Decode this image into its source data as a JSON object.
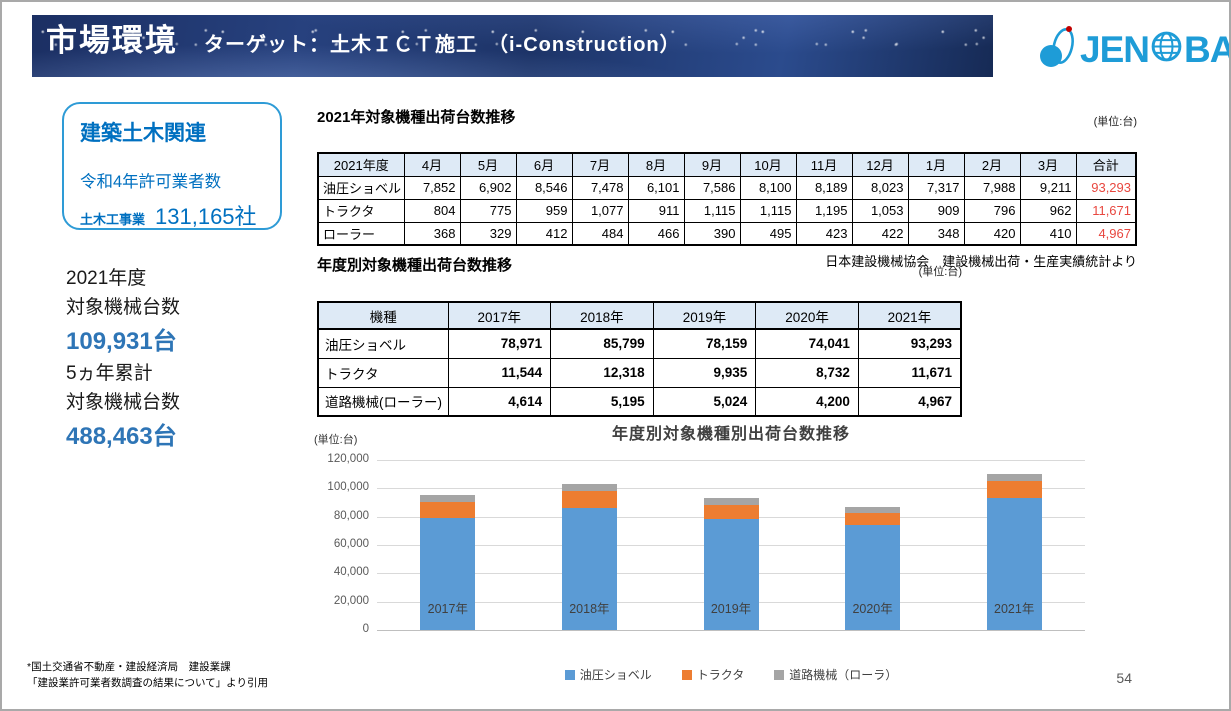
{
  "header": {
    "title": "市場環境",
    "subtitle": "ターゲット：土木ＩＣＴ施工　（i-Construction）"
  },
  "logo": {
    "part1": "JEN",
    "part2": "BA"
  },
  "sidebar": {
    "box": {
      "title": "建築土木関連",
      "line1": "令和4年許可業者数",
      "label2": "土木工事業",
      "value2": "131,165社"
    },
    "stat1": {
      "line1": "2021年度",
      "line2": "対象機械台数",
      "value": "109,931台"
    },
    "stat2": {
      "line1": "5ヵ年累計",
      "line2": "対象機械台数",
      "value": "488,463台"
    },
    "footnote1": "*国土交通省不動産・建設経済局　建設業課",
    "footnote2": "「建設業許可業者数調査の結果について」より引用"
  },
  "monthly_table": {
    "title": "2021年対象機種出荷台数推移",
    "unit": "(単位:台)",
    "header": [
      "2021年度",
      "4月",
      "5月",
      "6月",
      "7月",
      "8月",
      "9月",
      "10月",
      "11月",
      "12月",
      "1月",
      "2月",
      "3月",
      "合計"
    ],
    "rows": [
      {
        "label": "油圧ショベル",
        "values": [
          "7,852",
          "6,902",
          "8,546",
          "7,478",
          "6,101",
          "7,586",
          "8,100",
          "8,189",
          "8,023",
          "7,317",
          "7,988",
          "9,211"
        ],
        "total": "93,293"
      },
      {
        "label": "トラクタ",
        "values": [
          "804",
          "775",
          "959",
          "1,077",
          "911",
          "1,115",
          "1,115",
          "1,195",
          "1,053",
          "909",
          "796",
          "962"
        ],
        "total": "11,671"
      },
      {
        "label": "ローラー",
        "values": [
          "368",
          "329",
          "412",
          "484",
          "466",
          "390",
          "495",
          "423",
          "422",
          "348",
          "420",
          "410"
        ],
        "total": "4,967"
      }
    ],
    "source": "日本建設機械協会　建設機械出荷・生産実績統計より"
  },
  "yearly_table": {
    "title": "年度別対象機種出荷台数推移",
    "unit": "(単位:台)",
    "header": [
      "機種",
      "2017年",
      "2018年",
      "2019年",
      "2020年",
      "2021年"
    ],
    "rows": [
      {
        "label": "油圧ショベル",
        "values": [
          "78,971",
          "85,799",
          "78,159",
          "74,041",
          "93,293"
        ]
      },
      {
        "label": "トラクタ",
        "values": [
          "11,544",
          "12,318",
          "9,935",
          "8,732",
          "11,671"
        ]
      },
      {
        "label": "道路機械(ローラー)",
        "values": [
          "4,614",
          "5,195",
          "5,024",
          "4,200",
          "4,967"
        ]
      }
    ]
  },
  "chart_data": {
    "type": "bar",
    "stacked": true,
    "title": "年度別対象機種別出荷台数推移",
    "unit_label": "(単位:台)",
    "categories": [
      "2017年",
      "2018年",
      "2019年",
      "2020年",
      "2021年"
    ],
    "series": [
      {
        "name": "油圧ショベル",
        "color": "#5B9BD5",
        "values": [
          78971,
          85799,
          78159,
          74041,
          93293
        ]
      },
      {
        "name": "トラクタ",
        "color": "#ED7D31",
        "values": [
          11544,
          12318,
          9935,
          8732,
          11671
        ]
      },
      {
        "name": "道路機械（ローラ）",
        "color": "#A5A5A5",
        "values": [
          4614,
          5195,
          5024,
          4200,
          4967
        ]
      }
    ],
    "ylim": [
      0,
      120000
    ],
    "ytick_step": 20000,
    "yticks": [
      "0",
      "20,000",
      "40,000",
      "60,000",
      "80,000",
      "100,000",
      "120,000"
    ],
    "grid": true,
    "legend_position": "bottom"
  },
  "page_number": "54",
  "colors": {
    "accent_blue": "#0070C0",
    "stat_blue": "#2E75B6",
    "logo_blue": "#1E9CD7",
    "box_border_blue": "#2E9BD6",
    "table_header_bg": "#DEEAF6",
    "total_red": "#E8473F"
  }
}
